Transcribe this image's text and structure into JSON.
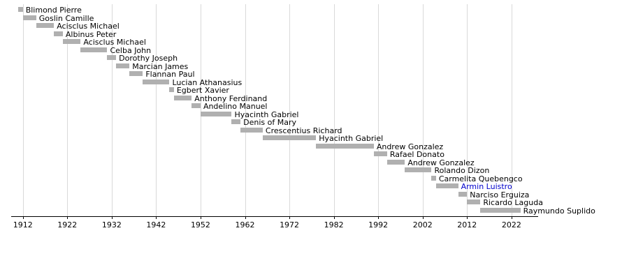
{
  "page": {
    "background_color": "#ffffff"
  },
  "chart_data": {
    "type": "bar",
    "variant": "timeline-gantt",
    "title": "",
    "xlabel": "",
    "ylabel": "",
    "xlim": [
      1910,
      2028
    ],
    "ticks": [
      1912,
      1922,
      1932,
      1942,
      1952,
      1962,
      1972,
      1982,
      1992,
      2002,
      2012,
      2022
    ],
    "grid": true,
    "legend": "none",
    "bar_color": "#b0b0b0",
    "grid_color": "#d9d9d9",
    "axis_color": "#000000",
    "text_color": "#000000",
    "link_color": "#0000cc",
    "bars": [
      {
        "label": "Blimond Pierre",
        "start": 1911,
        "end": 1912,
        "link": false
      },
      {
        "label": "Goslin Camille",
        "start": 1912,
        "end": 1915,
        "link": false
      },
      {
        "label": "Acisclus Michael",
        "start": 1915,
        "end": 1919,
        "link": false
      },
      {
        "label": "Albinus Peter",
        "start": 1919,
        "end": 1921,
        "link": false
      },
      {
        "label": "Acisclus Michael",
        "start": 1921,
        "end": 1925,
        "link": false
      },
      {
        "label": "Celba John",
        "start": 1925,
        "end": 1931,
        "link": false
      },
      {
        "label": "Dorothy Joseph",
        "start": 1931,
        "end": 1933,
        "link": false
      },
      {
        "label": "Marcian James",
        "start": 1933,
        "end": 1936,
        "link": false
      },
      {
        "label": "Flannan Paul",
        "start": 1936,
        "end": 1939,
        "link": false
      },
      {
        "label": "Lucian Athanasius",
        "start": 1939,
        "end": 1945,
        "link": false
      },
      {
        "label": "Egbert Xavier",
        "start": 1945,
        "end": 1946,
        "link": false
      },
      {
        "label": "Anthony Ferdinand",
        "start": 1946,
        "end": 1950,
        "link": false
      },
      {
        "label": "Andelino Manuel",
        "start": 1950,
        "end": 1952,
        "link": false
      },
      {
        "label": "Hyacinth Gabriel",
        "start": 1952,
        "end": 1959,
        "link": false
      },
      {
        "label": "Denis of Mary",
        "start": 1959,
        "end": 1961,
        "link": false
      },
      {
        "label": "Crescentius Richard",
        "start": 1961,
        "end": 1966,
        "link": false
      },
      {
        "label": "Hyacinth Gabriel",
        "start": 1966,
        "end": 1978,
        "link": false
      },
      {
        "label": "Andrew Gonzalez",
        "start": 1978,
        "end": 1991,
        "link": false
      },
      {
        "label": "Rafael Donato",
        "start": 1991,
        "end": 1994,
        "link": false
      },
      {
        "label": "Andrew Gonzalez",
        "start": 1994,
        "end": 1998,
        "link": false
      },
      {
        "label": "Rolando Dizon",
        "start": 1998,
        "end": 2004,
        "link": false
      },
      {
        "label": "Carmelita Quebengco",
        "start": 2004,
        "end": 2005,
        "link": false
      },
      {
        "label": "Armin Luistro",
        "start": 2005,
        "end": 2010,
        "link": true
      },
      {
        "label": "Narciso Erguiza",
        "start": 2010,
        "end": 2012,
        "link": false
      },
      {
        "label": "Ricardo Laguda",
        "start": 2012,
        "end": 2015,
        "link": false
      },
      {
        "label": "Raymundo Suplido",
        "start": 2015,
        "end": 2024,
        "link": false
      }
    ]
  }
}
